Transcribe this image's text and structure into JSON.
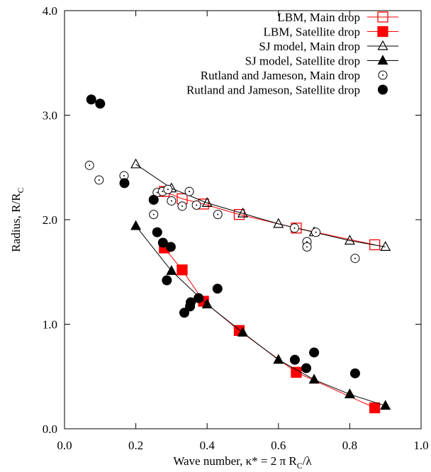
{
  "chart_data": {
    "type": "scatter",
    "xlabel": [
      "Wave number, κ* = 2 π R",
      "C",
      "/λ"
    ],
    "ylabel": [
      "Radius, R/R",
      "C"
    ],
    "xlim": [
      0,
      1
    ],
    "ylim": [
      0,
      4
    ],
    "xticks": [
      {
        "value": 0,
        "label": "0.0"
      },
      {
        "value": 0.2,
        "label": "0.2"
      },
      {
        "value": 0.4,
        "label": "0.4"
      },
      {
        "value": 0.6,
        "label": "0.6"
      },
      {
        "value": 0.8,
        "label": "0.8"
      },
      {
        "value": 1,
        "label": "1.0"
      }
    ],
    "yticks": [
      {
        "value": 0,
        "label": "0.0"
      },
      {
        "value": 1,
        "label": "1.0"
      },
      {
        "value": 2,
        "label": "2.0"
      },
      {
        "value": 3,
        "label": "3.0"
      },
      {
        "value": 4,
        "label": "4.0"
      }
    ],
    "legend": "upper right",
    "series": [
      {
        "name": "LBM, Main drop",
        "color": "#ff0000",
        "marker": "square",
        "filled": false,
        "line": true,
        "x": [
          0.28,
          0.33,
          0.39,
          0.49,
          0.65,
          0.87
        ],
        "values": [
          2.27,
          2.2,
          2.15,
          2.05,
          1.92,
          1.76
        ]
      },
      {
        "name": "LBM, Satellite drop",
        "color": "#ff0000",
        "marker": "square",
        "filled": true,
        "line": true,
        "x": [
          0.28,
          0.33,
          0.39,
          0.49,
          0.65,
          0.87
        ],
        "values": [
          1.73,
          1.52,
          1.22,
          0.94,
          0.54,
          0.2
        ]
      },
      {
        "name": "SJ model, Main drop",
        "color": "#000000",
        "marker": "triangle",
        "filled": false,
        "line": true,
        "x": [
          0.2,
          0.3,
          0.4,
          0.5,
          0.6,
          0.7,
          0.8,
          0.9
        ],
        "values": [
          2.53,
          2.3,
          2.16,
          2.06,
          1.96,
          1.88,
          1.8,
          1.74
        ]
      },
      {
        "name": "SJ model, Satellite drop",
        "color": "#000000",
        "marker": "triangle",
        "filled": true,
        "line": true,
        "x": [
          0.2,
          0.3,
          0.4,
          0.5,
          0.6,
          0.7,
          0.8,
          0.9
        ],
        "values": [
          1.94,
          1.51,
          1.19,
          0.92,
          0.66,
          0.47,
          0.33,
          0.22
        ]
      },
      {
        "name": "Rutland and Jameson, Main drop",
        "color": "#000000",
        "marker": "circle-dot",
        "filled": false,
        "line": false,
        "x": [
          0.07,
          0.097,
          0.167,
          0.25,
          0.26,
          0.275,
          0.29,
          0.3,
          0.33,
          0.35,
          0.37,
          0.43,
          0.645,
          0.68,
          0.68,
          0.705,
          0.815
        ],
        "values": [
          2.52,
          2.38,
          2.42,
          2.05,
          2.26,
          2.27,
          2.29,
          2.18,
          2.13,
          2.27,
          2.14,
          2.05,
          1.92,
          1.79,
          1.74,
          1.88,
          1.63
        ]
      },
      {
        "name": "Rutland and Jameson, Satellite drop",
        "color": "#000000",
        "marker": "circle",
        "filled": true,
        "line": false,
        "x": [
          0.075,
          0.1,
          0.168,
          0.25,
          0.26,
          0.276,
          0.298,
          0.287,
          0.336,
          0.352,
          0.354,
          0.376,
          0.429,
          0.646,
          0.678,
          0.7,
          0.815
        ],
        "values": [
          3.15,
          3.11,
          2.35,
          2.19,
          1.88,
          1.78,
          1.74,
          1.42,
          1.11,
          1.17,
          1.21,
          1.25,
          1.34,
          0.66,
          0.58,
          0.73,
          0.53
        ]
      }
    ]
  }
}
